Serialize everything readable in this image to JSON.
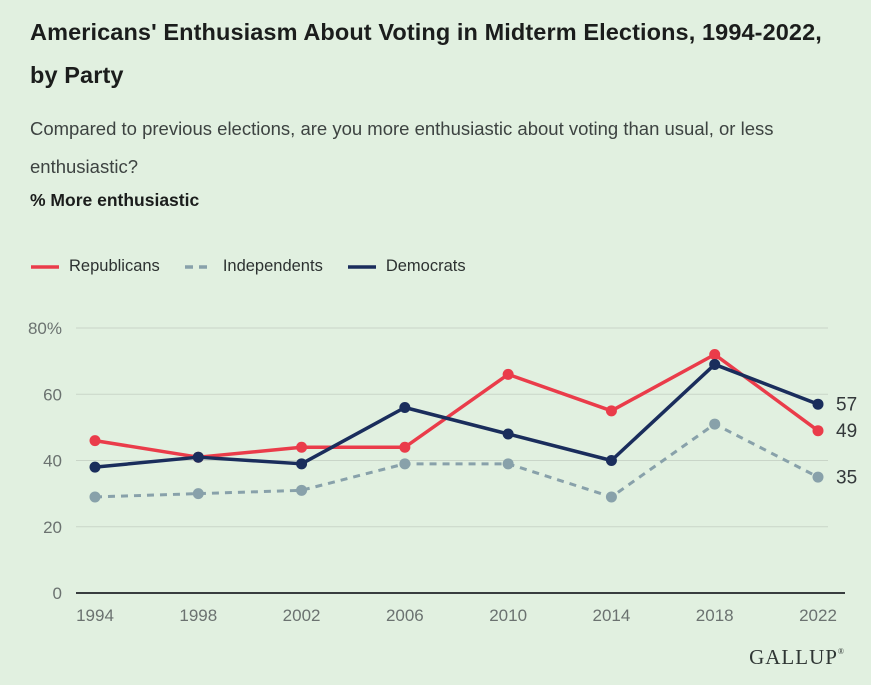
{
  "page": {
    "title": "Americans' Enthusiasm About Voting in Midterm Elections, 1994-2022, by Party",
    "subtitle": "Compared to previous elections, are you more enthusiastic about voting than usual, or less enthusiastic?",
    "measure_label": "% More enthusiastic",
    "brand": "GALLUP",
    "brand_mark": "®",
    "background_color": "#e1f0e0"
  },
  "legend": [
    {
      "label": "Republicans",
      "color": "#ea3c4a",
      "style": "solid"
    },
    {
      "label": "Independents",
      "color": "#88a1aa",
      "style": "dashed"
    },
    {
      "label": "Democrats",
      "color": "#1a2d5c",
      "style": "solid"
    }
  ],
  "chart_data": {
    "type": "line",
    "title": "Americans' Enthusiasm About Voting in Midterm Elections, 1994-2022, by Party",
    "subtitle": "% More enthusiastic",
    "x": [
      1994,
      1998,
      2002,
      2006,
      2010,
      2014,
      2018,
      2022
    ],
    "series": [
      {
        "name": "Republicans",
        "values": [
          46,
          41,
          44,
          44,
          66,
          55,
          72,
          49
        ],
        "color": "#ea3c4a",
        "dash": false,
        "end_label": "49"
      },
      {
        "name": "Independents",
        "values": [
          29,
          30,
          31,
          39,
          39,
          29,
          51,
          35
        ],
        "color": "#88a1aa",
        "dash": true,
        "end_label": "35"
      },
      {
        "name": "Democrats",
        "values": [
          38,
          41,
          39,
          56,
          48,
          40,
          69,
          57
        ],
        "color": "#1a2d5c",
        "dash": false,
        "end_label": "57"
      }
    ],
    "draw_order": [
      1,
      0,
      2
    ],
    "xlabel": "",
    "ylabel": "",
    "ylim": [
      0,
      80
    ],
    "yticks": [
      0,
      20,
      40,
      60,
      80
    ],
    "ytick_labels": [
      "0",
      "20",
      "40",
      "60",
      "80%"
    ],
    "grid": true,
    "legend_position": "top",
    "colors": {
      "gridline": "#c9d5c8",
      "baseline": "#383d3f",
      "tick_text": "#6b7270",
      "end_label_text": "#34393b"
    }
  }
}
